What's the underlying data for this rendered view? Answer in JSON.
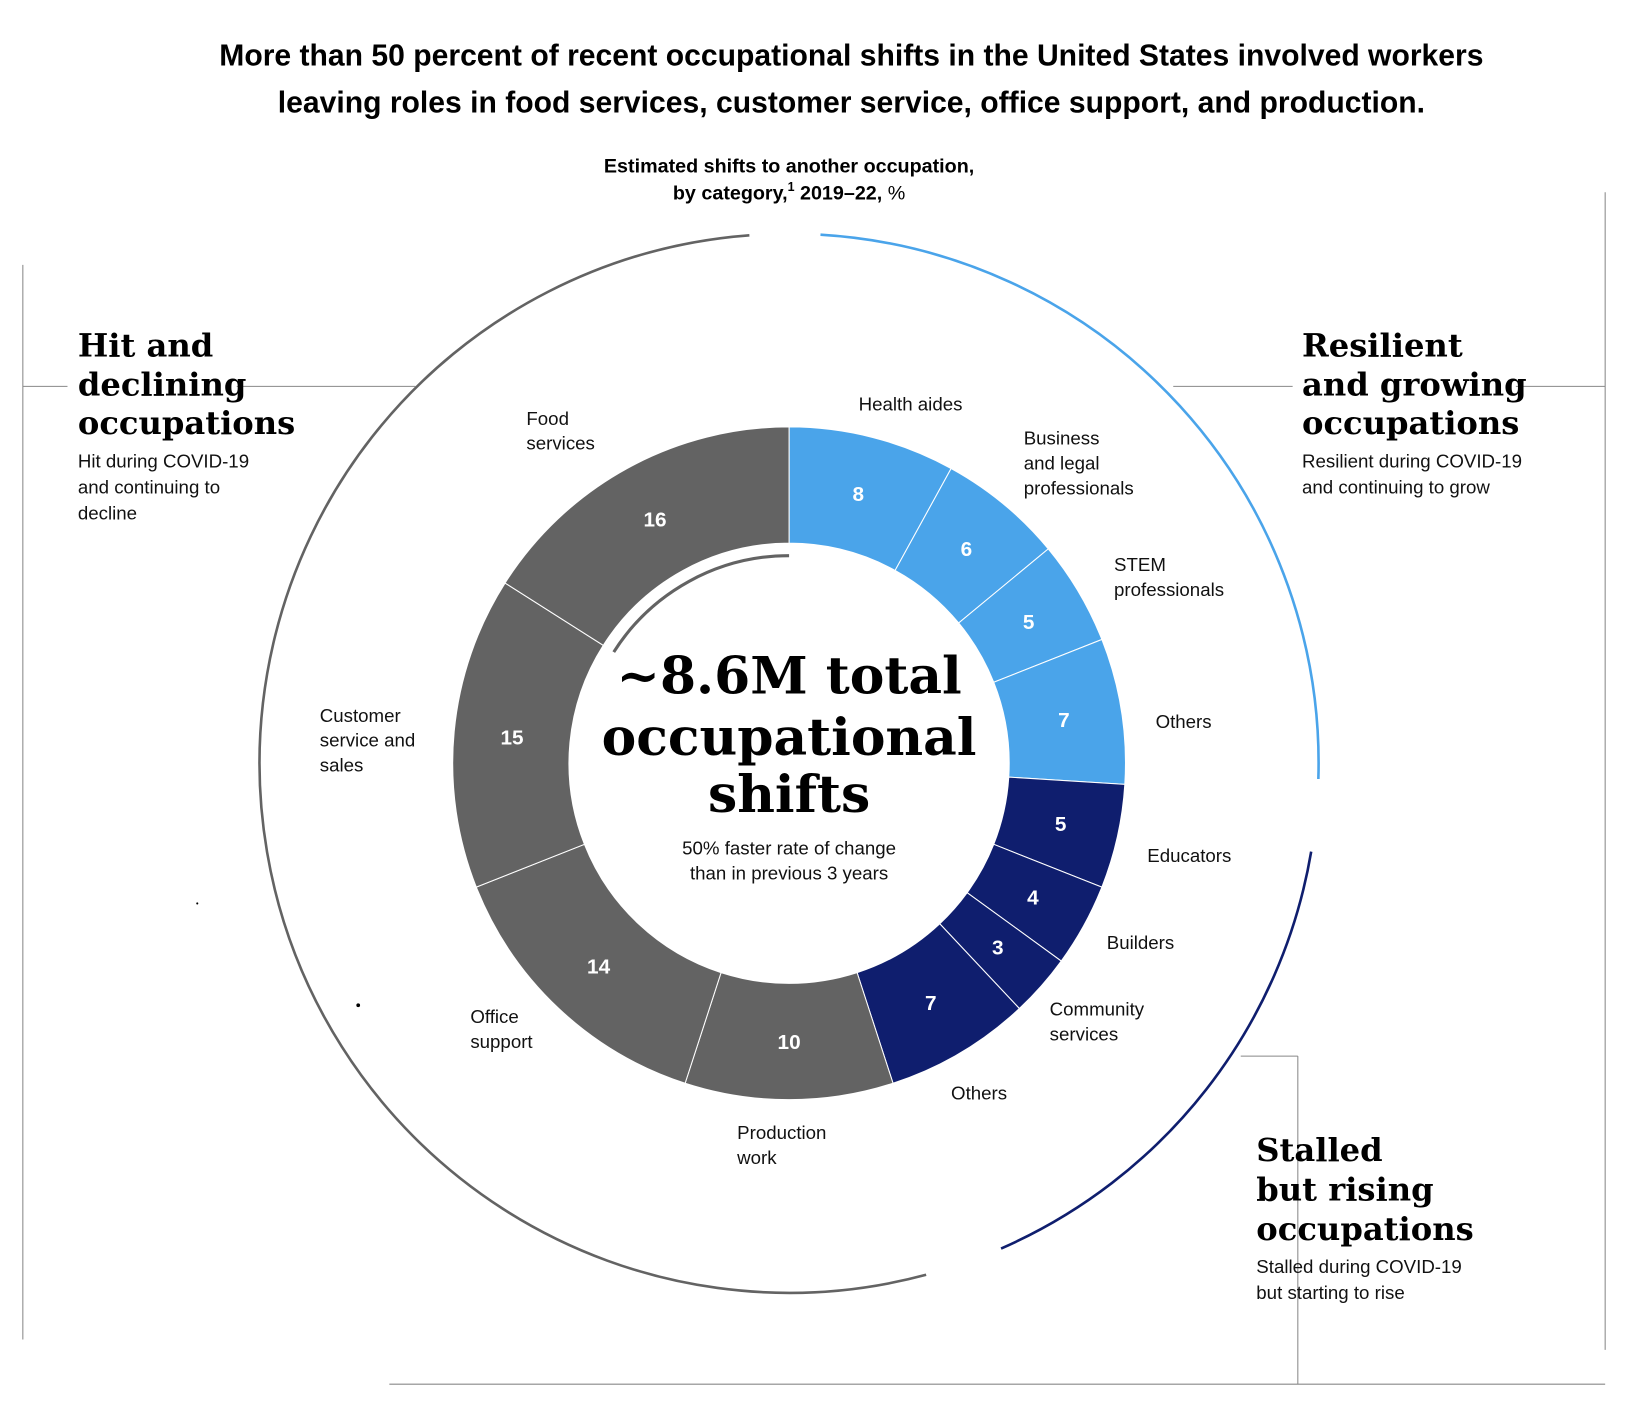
{
  "title_lines": [
    "More than 50 percent of recent occupational shifts in the United States involved workers",
    "leaving roles in food services, customer service, office support, and production."
  ],
  "subtitle": {
    "line1": "Estimated shifts to another occupation,",
    "line2_a": "by category,",
    "footnote": "1",
    "line2_b": " 2019–22, ",
    "unit": "%"
  },
  "center": {
    "lines": [
      "~8.6M total",
      "occupational",
      "shifts"
    ],
    "sub_lines": [
      "50% faster rate of change",
      "than in previous 3 years"
    ]
  },
  "groups": {
    "hit": {
      "title_lines": [
        "Hit and",
        "declining",
        "occupations"
      ],
      "desc_lines": [
        "Hit during COVID-19",
        "and continuing to",
        "decline"
      ],
      "color": "#636363"
    },
    "resilient": {
      "title_lines": [
        "Resilient",
        "and growing",
        "occupations"
      ],
      "desc_lines": [
        "Resilient during COVID-19",
        "and continuing to grow"
      ],
      "color": "#4aa4ea"
    },
    "stalled": {
      "title_lines": [
        "Stalled",
        "but rising",
        "occupations"
      ],
      "desc_lines": [
        "Stalled during COVID-19",
        "but starting to rise"
      ],
      "color": "#0f1e6e"
    }
  },
  "chart_data": {
    "type": "donut",
    "unit": "%",
    "segments": [
      {
        "label_lines": [
          "Health aides"
        ],
        "value": 8,
        "group": "resilient"
      },
      {
        "label_lines": [
          "Business",
          "and legal",
          "professionals"
        ],
        "value": 6,
        "group": "resilient"
      },
      {
        "label_lines": [
          "STEM",
          "professionals"
        ],
        "value": 5,
        "group": "resilient"
      },
      {
        "label_lines": [
          "Others"
        ],
        "value": 7,
        "group": "resilient"
      },
      {
        "label_lines": [
          "Educators"
        ],
        "value": 5,
        "group": "stalled"
      },
      {
        "label_lines": [
          "Builders"
        ],
        "value": 4,
        "group": "stalled"
      },
      {
        "label_lines": [
          "Community",
          "services"
        ],
        "value": 3,
        "group": "stalled"
      },
      {
        "label_lines": [
          "Others"
        ],
        "value": 7,
        "group": "stalled"
      },
      {
        "label_lines": [
          "Production",
          "work"
        ],
        "value": 10,
        "group": "hit"
      },
      {
        "label_lines": [
          "Office",
          "support"
        ],
        "value": 14,
        "group": "hit"
      },
      {
        "label_lines": [
          "Customer",
          "service and",
          "sales"
        ],
        "value": 15,
        "group": "hit"
      },
      {
        "label_lines": [
          "Food",
          "services"
        ],
        "value": 16,
        "group": "hit"
      }
    ]
  }
}
